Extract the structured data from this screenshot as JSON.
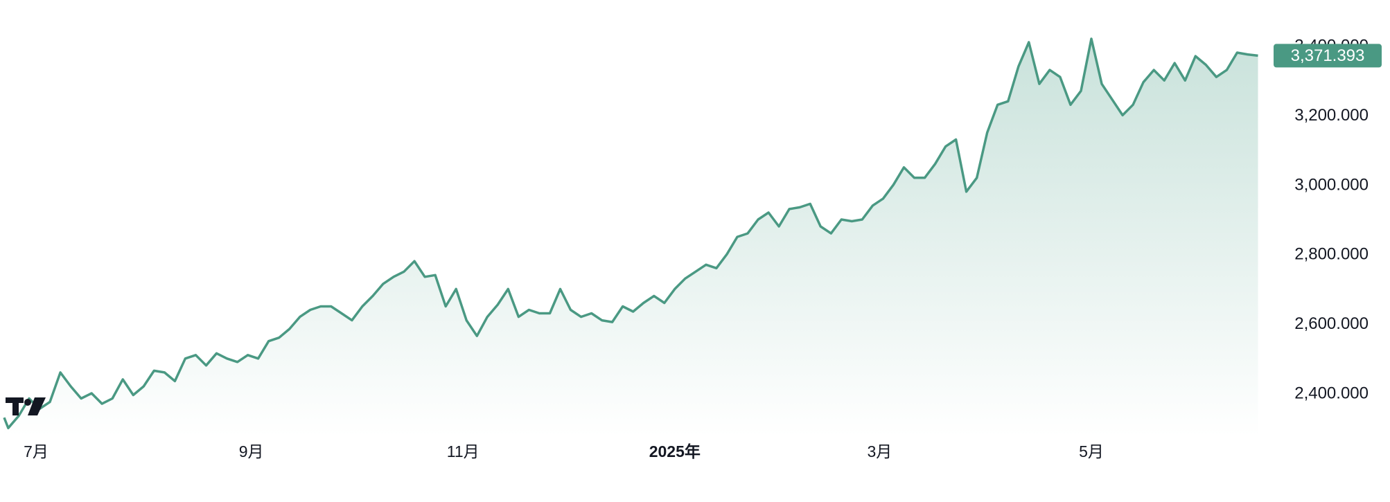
{
  "colors": {
    "line": "#4a9983",
    "area_top": "#c9e2db",
    "area_bottom": "#ffffff",
    "price_tag_bg": "#4a9983",
    "price_tag_text": "#ffffff",
    "axis_text": "#131722",
    "logo": "#131722"
  },
  "logo": {
    "name": "tradingview-logo-icon",
    "text": "TV"
  },
  "chart_data": {
    "type": "area",
    "title": "",
    "xlabel": "",
    "ylabel": "",
    "ylim": [
      2280,
      3460
    ],
    "y_ticks": [
      2400,
      2600,
      2800,
      3000,
      3200,
      3400
    ],
    "y_tick_labels": [
      "2,400.000",
      "2,600.000",
      "2,800.000",
      "3,000.000",
      "3,200.000",
      "3,400.000"
    ],
    "x_ticks": [
      {
        "label": "7月",
        "bold": false,
        "date": "2024-07-01"
      },
      {
        "label": "9月",
        "bold": false,
        "date": "2024-09-01"
      },
      {
        "label": "11月",
        "bold": false,
        "date": "2024-11-01"
      },
      {
        "label": "2025年",
        "bold": true,
        "date": "2025-01-01"
      },
      {
        "label": "3月",
        "bold": false,
        "date": "2025-03-01"
      },
      {
        "label": "5月",
        "bold": false,
        "date": "2025-05-01"
      }
    ],
    "last_value_label": "3,371.393",
    "last_value": 3371.393,
    "grid": false,
    "legend": "none",
    "series": [
      {
        "dates": [
          "2024-06-20",
          "2024-06-23",
          "2024-06-26",
          "2024-06-29",
          "2024-07-02",
          "2024-07-05",
          "2024-07-08",
          "2024-07-11",
          "2024-07-14",
          "2024-07-17",
          "2024-07-20",
          "2024-07-23",
          "2024-07-26",
          "2024-07-29",
          "2024-08-01",
          "2024-08-04",
          "2024-08-07",
          "2024-08-10",
          "2024-08-13",
          "2024-08-16",
          "2024-08-19",
          "2024-08-22",
          "2024-08-25",
          "2024-08-28",
          "2024-08-31",
          "2024-09-03",
          "2024-09-06",
          "2024-09-09",
          "2024-09-12",
          "2024-09-15",
          "2024-09-18",
          "2024-09-21",
          "2024-09-24",
          "2024-09-27",
          "2024-09-30",
          "2024-10-03",
          "2024-10-06",
          "2024-10-09",
          "2024-10-12",
          "2024-10-15",
          "2024-10-18",
          "2024-10-21",
          "2024-10-24",
          "2024-10-27",
          "2024-10-30",
          "2024-11-02",
          "2024-11-05",
          "2024-11-08",
          "2024-11-11",
          "2024-11-14",
          "2024-11-17",
          "2024-11-20",
          "2024-11-23",
          "2024-11-26",
          "2024-11-29",
          "2024-12-02",
          "2024-12-05",
          "2024-12-08",
          "2024-12-11",
          "2024-12-14",
          "2024-12-17",
          "2024-12-20",
          "2024-12-23",
          "2024-12-26",
          "2024-12-29",
          "2025-01-01",
          "2025-01-04",
          "2025-01-07",
          "2025-01-10",
          "2025-01-13",
          "2025-01-16",
          "2025-01-19",
          "2025-01-22",
          "2025-01-25",
          "2025-01-28",
          "2025-01-31",
          "2025-02-03",
          "2025-02-06",
          "2025-02-09",
          "2025-02-12",
          "2025-02-15",
          "2025-02-18",
          "2025-02-21",
          "2025-02-24",
          "2025-02-27",
          "2025-03-02",
          "2025-03-05",
          "2025-03-08",
          "2025-03-11",
          "2025-03-14",
          "2025-03-17",
          "2025-03-20",
          "2025-03-23",
          "2025-03-26",
          "2025-03-29",
          "2025-04-01",
          "2025-04-04",
          "2025-04-07",
          "2025-04-10",
          "2025-04-13",
          "2025-04-16",
          "2025-04-19",
          "2025-04-22",
          "2025-04-25",
          "2025-04-28",
          "2025-05-01",
          "2025-05-04",
          "2025-05-07",
          "2025-05-10",
          "2025-05-13",
          "2025-05-16",
          "2025-05-19",
          "2025-05-22",
          "2025-05-25",
          "2025-05-28",
          "2025-05-31",
          "2025-06-03",
          "2025-06-06",
          "2025-06-09",
          "2025-06-12",
          "2025-06-15",
          "2025-06-18"
        ],
        "values": [
          2330,
          2300,
          2335,
          2385,
          2355,
          2375,
          2460,
          2420,
          2385,
          2400,
          2370,
          2385,
          2440,
          2395,
          2420,
          2465,
          2460,
          2435,
          2500,
          2510,
          2480,
          2515,
          2500,
          2490,
          2510,
          2500,
          2550,
          2560,
          2585,
          2620,
          2640,
          2650,
          2650,
          2630,
          2610,
          2650,
          2680,
          2715,
          2735,
          2750,
          2780,
          2735,
          2740,
          2650,
          2700,
          2610,
          2565,
          2620,
          2655,
          2700,
          2620,
          2640,
          2630,
          2630,
          2700,
          2640,
          2620,
          2630,
          2610,
          2605,
          2650,
          2635,
          2660,
          2680,
          2660,
          2700,
          2730,
          2750,
          2770,
          2760,
          2800,
          2850,
          2860,
          2900,
          2920,
          2880,
          2930,
          2935,
          2945,
          2880,
          2860,
          2900,
          2895,
          2900,
          2940,
          2960,
          3000,
          3050,
          3020,
          3020,
          3060,
          3110,
          3130,
          2980,
          3020,
          3150,
          3230,
          3240,
          3340,
          3410,
          3290,
          3330,
          3310,
          3230,
          3270,
          3420,
          3290,
          3245,
          3200,
          3230,
          3295,
          3330,
          3300,
          3350,
          3300,
          3370,
          3345,
          3310,
          3330,
          3380,
          3375,
          3371.393
        ]
      }
    ]
  }
}
